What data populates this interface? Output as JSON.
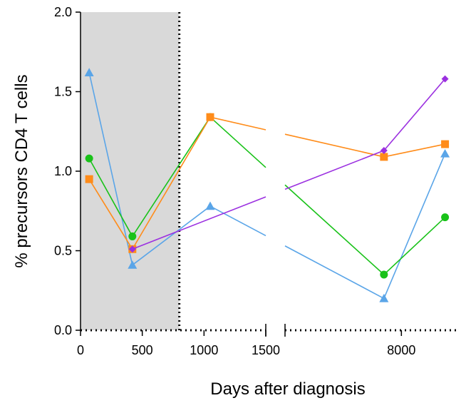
{
  "chart_data": {
    "type": "line",
    "xlabel": "Days after diagnosis",
    "ylabel": "% precursors CD4 T cells",
    "ylim": [
      0,
      2.0
    ],
    "y_ticks": [
      "0.0",
      "0.5",
      "1.0",
      "1.5",
      "2.0"
    ],
    "x_ticks": [
      "0",
      "500",
      "1000",
      "1500",
      "8000"
    ],
    "x_axis_break": "between 1500 and 8000",
    "shaded_region": {
      "x_range": [
        0,
        800
      ],
      "color": "#d9d9d9"
    },
    "vertical_line": {
      "x": 800,
      "style": "dotted"
    },
    "series": [
      {
        "marker": "triangle",
        "color": "#5aa5e8",
        "points": [
          {
            "x": 70,
            "y": 1.62
          },
          {
            "x": 420,
            "y": 0.41
          },
          {
            "x": 1050,
            "y": 0.78
          },
          {
            "x": 7700,
            "y": 0.2
          },
          {
            "x": 8750,
            "y": 1.11
          }
        ]
      },
      {
        "marker": "circle",
        "color": "#19c219",
        "points": [
          {
            "x": 70,
            "y": 1.08
          },
          {
            "x": 420,
            "y": 0.59
          },
          {
            "x": 1050,
            "y": 1.34
          },
          {
            "x": 7700,
            "y": 0.35
          },
          {
            "x": 8750,
            "y": 0.71
          }
        ]
      },
      {
        "marker": "square",
        "color": "#ff8c1a",
        "points": [
          {
            "x": 70,
            "y": 0.95
          },
          {
            "x": 420,
            "y": 0.51
          },
          {
            "x": 1050,
            "y": 1.34
          },
          {
            "x": 7700,
            "y": 1.09
          },
          {
            "x": 8750,
            "y": 1.17
          }
        ]
      },
      {
        "marker": "diamond",
        "color": "#9b30e0",
        "points": [
          {
            "x": 420,
            "y": 0.51
          },
          {
            "x": 7700,
            "y": 1.13
          },
          {
            "x": 8750,
            "y": 1.58
          }
        ]
      }
    ]
  }
}
